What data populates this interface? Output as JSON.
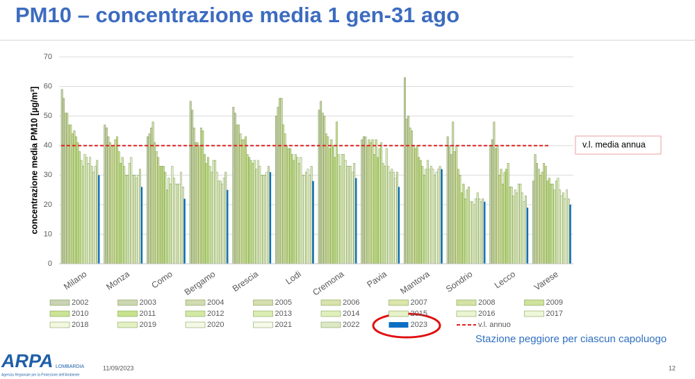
{
  "chart_data": {
    "type": "bar",
    "title": "PM10 – concentrazione media 1 gen-31 ago",
    "y_label": "concentrazione media PM10 [µg/m³]",
    "categories": [
      "Milano",
      "Monza",
      "Como",
      "Bergamo",
      "Brescia",
      "Lodi",
      "Cremona",
      "Pavia",
      "Mantova",
      "Sondrio",
      "Lecco",
      "Varese"
    ],
    "ylim": [
      0,
      70
    ],
    "yticks": [
      0,
      10,
      20,
      30,
      40,
      50,
      60,
      70
    ],
    "grid": true,
    "series": [
      {
        "name": "2002",
        "color": "#c9d2b4",
        "values": [
          59,
          47,
          43,
          55,
          53,
          50,
          52,
          42,
          63,
          43,
          40,
          28
        ]
      },
      {
        "name": "2003",
        "color": "#cdd6b2",
        "values": [
          56,
          46,
          44,
          52,
          51,
          53,
          55,
          43,
          49,
          40,
          42,
          37
        ]
      },
      {
        "name": "2004",
        "color": "#d1dab0",
        "values": [
          51,
          43,
          46,
          46,
          47,
          56,
          51,
          43,
          50,
          37,
          48,
          34
        ]
      },
      {
        "name": "2005",
        "color": "#d5deae",
        "values": [
          51,
          41,
          48,
          41,
          47,
          56,
          50,
          40,
          46,
          48,
          39,
          32
        ]
      },
      {
        "name": "2006",
        "color": "#d8e2ac",
        "values": [
          47,
          40,
          41,
          41,
          44,
          47,
          44,
          42,
          45,
          38,
          40,
          30
        ]
      },
      {
        "name": "2007",
        "color": "#dce6aa",
        "values": [
          47,
          40,
          38,
          40,
          42,
          44,
          43,
          41,
          40,
          40,
          30,
          31
        ]
      },
      {
        "name": "2008",
        "color": "#d4e3a4",
        "values": [
          44,
          42,
          36,
          46,
          42,
          40,
          39,
          42,
          39,
          32,
          32,
          34
        ]
      },
      {
        "name": "2009",
        "color": "#d0e39c",
        "values": [
          45,
          43,
          33,
          45,
          43,
          39,
          42,
          37,
          40,
          30,
          27,
          33
        ]
      },
      {
        "name": "2010",
        "color": "#cbe394",
        "values": [
          43,
          38,
          33,
          37,
          37,
          39,
          40,
          42,
          36,
          24,
          31,
          28
        ]
      },
      {
        "name": "2011",
        "color": "#c6e38c",
        "values": [
          41,
          34,
          33,
          34,
          36,
          37,
          36,
          36,
          35,
          27,
          32,
          29
        ]
      },
      {
        "name": "2012",
        "color": "#d2e9a4",
        "values": [
          38,
          36,
          31,
          36,
          35,
          35,
          48,
          39,
          33,
          22,
          34,
          27
        ]
      },
      {
        "name": "2013",
        "color": "#daedb2",
        "values": [
          35,
          33,
          25,
          33,
          34,
          37,
          37,
          41,
          30,
          25,
          26,
          27
        ]
      },
      {
        "name": "2014",
        "color": "#e0f0bd",
        "values": [
          33,
          30,
          29,
          31,
          35,
          36,
          33,
          34,
          32,
          26,
          26,
          25
        ]
      },
      {
        "name": "2015",
        "color": "#e6f3c8",
        "values": [
          37,
          30,
          27,
          35,
          32,
          34,
          37,
          33,
          35,
          21,
          23,
          28
        ]
      },
      {
        "name": "2016",
        "color": "#ebf5d2",
        "values": [
          36,
          34,
          33,
          35,
          35,
          36,
          37,
          39,
          32,
          21,
          25,
          29
        ]
      },
      {
        "name": "2017",
        "color": "#eff7da",
        "values": [
          34,
          36,
          29,
          31,
          33,
          30,
          35,
          33,
          33,
          20,
          24,
          25
        ]
      },
      {
        "name": "2018",
        "color": "#f2f8e0",
        "values": [
          36,
          30,
          27,
          28,
          30,
          30,
          33,
          31,
          32,
          22,
          27,
          23
        ]
      },
      {
        "name": "2019",
        "color": "#e4f1c4",
        "values": [
          33,
          30,
          27,
          28,
          30,
          31,
          33,
          32,
          30,
          24,
          27,
          24
        ]
      },
      {
        "name": "2020",
        "color": "#f4f9e6",
        "values": [
          31,
          29,
          27,
          27,
          30,
          32,
          33,
          31,
          31,
          22,
          24,
          22
        ]
      },
      {
        "name": "2021",
        "color": "#f6faea",
        "values": [
          33,
          30,
          31,
          29,
          31,
          30,
          31,
          29,
          32,
          21,
          21,
          25
        ]
      },
      {
        "name": "2022",
        "color": "#dde8c6",
        "values": [
          35,
          32,
          26,
          31,
          33,
          33,
          34,
          31,
          33,
          22,
          23,
          22
        ]
      },
      {
        "name": "2023",
        "color": "#0a6fc2",
        "values": [
          30,
          26,
          22,
          25,
          31,
          28,
          29,
          26,
          32,
          21,
          19,
          20
        ]
      }
    ],
    "limit": {
      "name": "v.l. annuo",
      "value": 40,
      "color": "#e02020"
    },
    "limit_annotation": "v.l. media annua",
    "note": "Stazione peggiore per ciascun capoluogo"
  },
  "footer": {
    "logo": "ARPA",
    "logo_region": "LOMBARDIA",
    "logo_subtitle": "Agenzia Regionale per la Protezione dell'Ambiente",
    "date": "11/09/2023",
    "page": "12"
  }
}
